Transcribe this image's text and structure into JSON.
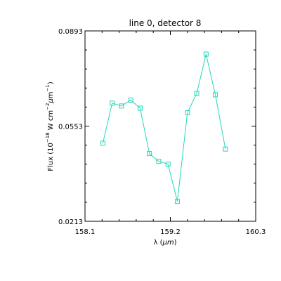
{
  "chart_data": {
    "type": "line",
    "title": "line 0, detector 8",
    "xlabel_main": "λ (",
    "xlabel_unit": "μm",
    "xlabel_tail": ")",
    "ylabel_main": "Flux (10",
    "ylabel_exp1": "−18",
    "ylabel_mid1": " W cm",
    "ylabel_exp2": "−2",
    "ylabel_mu": "μ",
    "ylabel_mid2": "m",
    "ylabel_exp3": "−1",
    "ylabel_tail": ")",
    "xlim": [
      158.1,
      160.3
    ],
    "ylim": [
      0.0213,
      0.0893
    ],
    "x_ticks": [
      {
        "value": 158.1,
        "label": "158.1"
      },
      {
        "value": 159.2,
        "label": "159.2"
      },
      {
        "value": 160.3,
        "label": "160.3"
      }
    ],
    "y_ticks": [
      {
        "value": 0.0213,
        "label": "0.0213"
      },
      {
        "value": 0.0553,
        "label": "0.0553"
      },
      {
        "value": 0.0893,
        "label": "0.0893"
      }
    ],
    "series": [
      {
        "color": "#20d8b8",
        "marker": "square",
        "x": [
          158.33,
          158.45,
          158.57,
          158.69,
          158.81,
          158.93,
          159.05,
          159.17,
          159.29,
          159.42,
          159.54,
          159.66,
          159.78,
          159.91
        ],
        "y": [
          0.0492,
          0.0635,
          0.0625,
          0.0646,
          0.0617,
          0.0455,
          0.0427,
          0.0417,
          0.0284,
          0.0601,
          0.067,
          0.081,
          0.0665,
          0.0471
        ]
      }
    ]
  }
}
